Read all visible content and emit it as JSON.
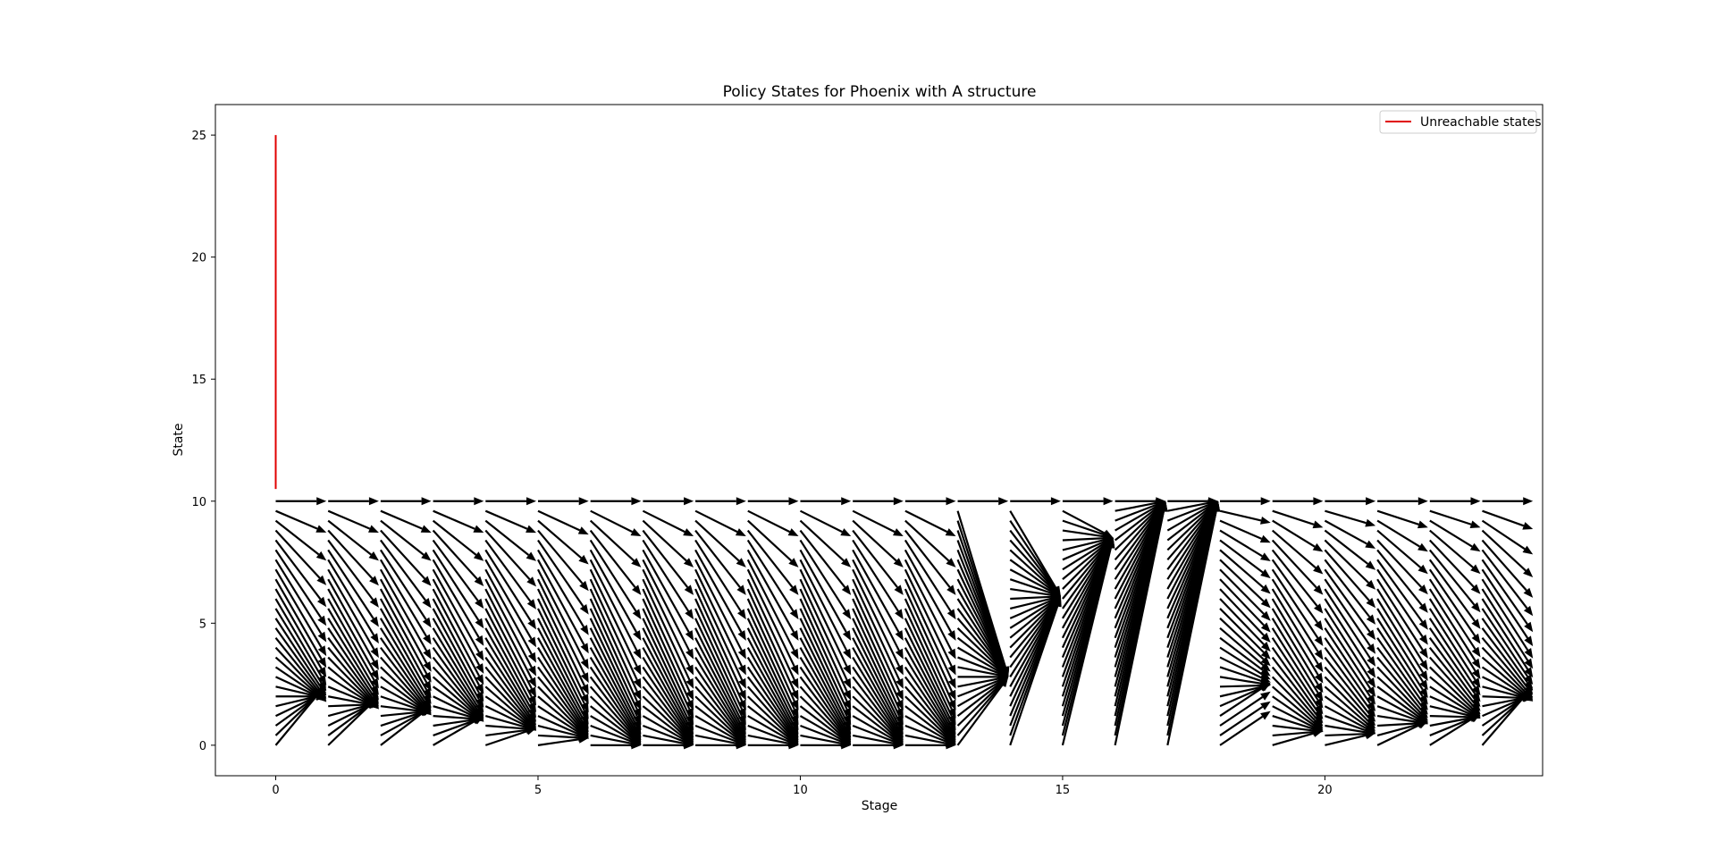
{
  "chart_data": {
    "type": "quiver",
    "title": "Policy States for Phoenix with A structure",
    "xlabel": "Stage",
    "ylabel": "State",
    "xlim": [
      -1.15,
      24.15
    ],
    "ylim": [
      -1.25,
      26.25
    ],
    "xticks": [
      0,
      5,
      10,
      15,
      20
    ],
    "yticks": [
      0,
      5,
      10,
      15,
      20,
      25
    ],
    "grid": false,
    "legend": {
      "placement": "top-right",
      "entries": [
        {
          "label": "Unreachable states",
          "color": "#e00000"
        }
      ]
    },
    "unreachable_states": {
      "stage": 0,
      "from_state": 10.5,
      "to_state": 25
    },
    "arrow_color": "#000000",
    "state_min": 0,
    "state_max": 10,
    "state_step": 0.4,
    "policy": [
      {
        "stage": 0,
        "targets": {
          "type": "curve",
          "jump": 2.5,
          "cap": 0.8,
          "floor": 0.0,
          "pow": 2.4
        }
      },
      {
        "stage": 1,
        "targets": {
          "type": "curve",
          "jump": 2.0,
          "cap": 0.8,
          "floor": 0.0,
          "pow": 2.4
        }
      },
      {
        "stage": 2,
        "targets": {
          "type": "curve",
          "jump": 1.6,
          "cap": 0.8,
          "floor": 0.0,
          "pow": 2.4
        }
      },
      {
        "stage": 3,
        "targets": {
          "type": "curve",
          "jump": 1.2,
          "cap": 0.8,
          "floor": 0.0,
          "pow": 2.4
        }
      },
      {
        "stage": 4,
        "targets": {
          "type": "curve",
          "jump": 0.7,
          "cap": 0.8,
          "floor": 0.0,
          "pow": 2.4
        }
      },
      {
        "stage": 5,
        "targets": {
          "type": "curve",
          "jump": 0.3,
          "cap": 0.9,
          "floor": 0.0,
          "pow": 2.6
        }
      },
      {
        "stage": 6,
        "targets": {
          "type": "curve",
          "jump": 0.0,
          "cap": 0.9,
          "floor": 0.0,
          "pow": 2.8,
          "top_flat": true
        }
      },
      {
        "stage": 7,
        "targets": {
          "type": "curve",
          "jump": 0.0,
          "cap": 0.9,
          "floor": 0.0,
          "pow": 2.8,
          "top_flat": true
        }
      },
      {
        "stage": 8,
        "targets": {
          "type": "curve",
          "jump": 0.0,
          "cap": 0.9,
          "floor": 0.0,
          "pow": 2.8,
          "top_flat": true
        }
      },
      {
        "stage": 9,
        "targets": {
          "type": "curve",
          "jump": 0.0,
          "cap": 0.9,
          "floor": 0.0,
          "pow": 2.8,
          "top_flat": true
        }
      },
      {
        "stage": 10,
        "targets": {
          "type": "curve",
          "jump": 0.0,
          "cap": 0.9,
          "floor": 0.0,
          "pow": 2.8,
          "top_flat": true
        }
      },
      {
        "stage": 11,
        "targets": {
          "type": "curve",
          "jump": 0.0,
          "cap": 0.9,
          "floor": 0.0,
          "pow": 2.8,
          "top_flat": true
        }
      },
      {
        "stage": 12,
        "targets": {
          "type": "curve",
          "jump": 0.0,
          "cap": 0.9,
          "floor": 0.0,
          "pow": 2.8,
          "top_flat": true
        }
      },
      {
        "stage": 13,
        "targets": {
          "type": "converge",
          "point": 2.8,
          "top_flat": true
        }
      },
      {
        "stage": 14,
        "targets": {
          "type": "converge",
          "point": 6.1,
          "top_flat": true
        }
      },
      {
        "stage": 15,
        "targets": {
          "type": "converge",
          "point": 8.5,
          "top_flat": true
        }
      },
      {
        "stage": 16,
        "targets": {
          "type": "converge",
          "point": 10.0,
          "top_flat": true
        }
      },
      {
        "stage": 17,
        "targets": {
          "type": "converge",
          "point": 10.0,
          "top_flat": true
        }
      },
      {
        "stage": 18,
        "targets": {
          "type": "curve",
          "jump": 1.4,
          "cap": 1.0,
          "floor": 1.4,
          "pow": 1.5
        }
      },
      {
        "stage": 19,
        "targets": {
          "type": "curve",
          "jump": 0.6,
          "cap": 0.5,
          "floor": 0.0,
          "pow": 1.8
        }
      },
      {
        "stage": 20,
        "targets": {
          "type": "curve",
          "jump": 0.5,
          "cap": 0.6,
          "floor": 0.0,
          "pow": 1.6
        }
      },
      {
        "stage": 21,
        "targets": {
          "type": "curve",
          "jump": 1.0,
          "cap": 0.5,
          "floor": 0.0,
          "pow": 1.8
        }
      },
      {
        "stage": 22,
        "targets": {
          "type": "curve",
          "jump": 1.3,
          "cap": 0.5,
          "floor": 0.0,
          "pow": 1.8
        }
      },
      {
        "stage": 23,
        "targets": {
          "type": "curve",
          "jump": 2.4,
          "cap": 0.4,
          "floor": 0.0,
          "pow": 2.0
        }
      }
    ]
  }
}
